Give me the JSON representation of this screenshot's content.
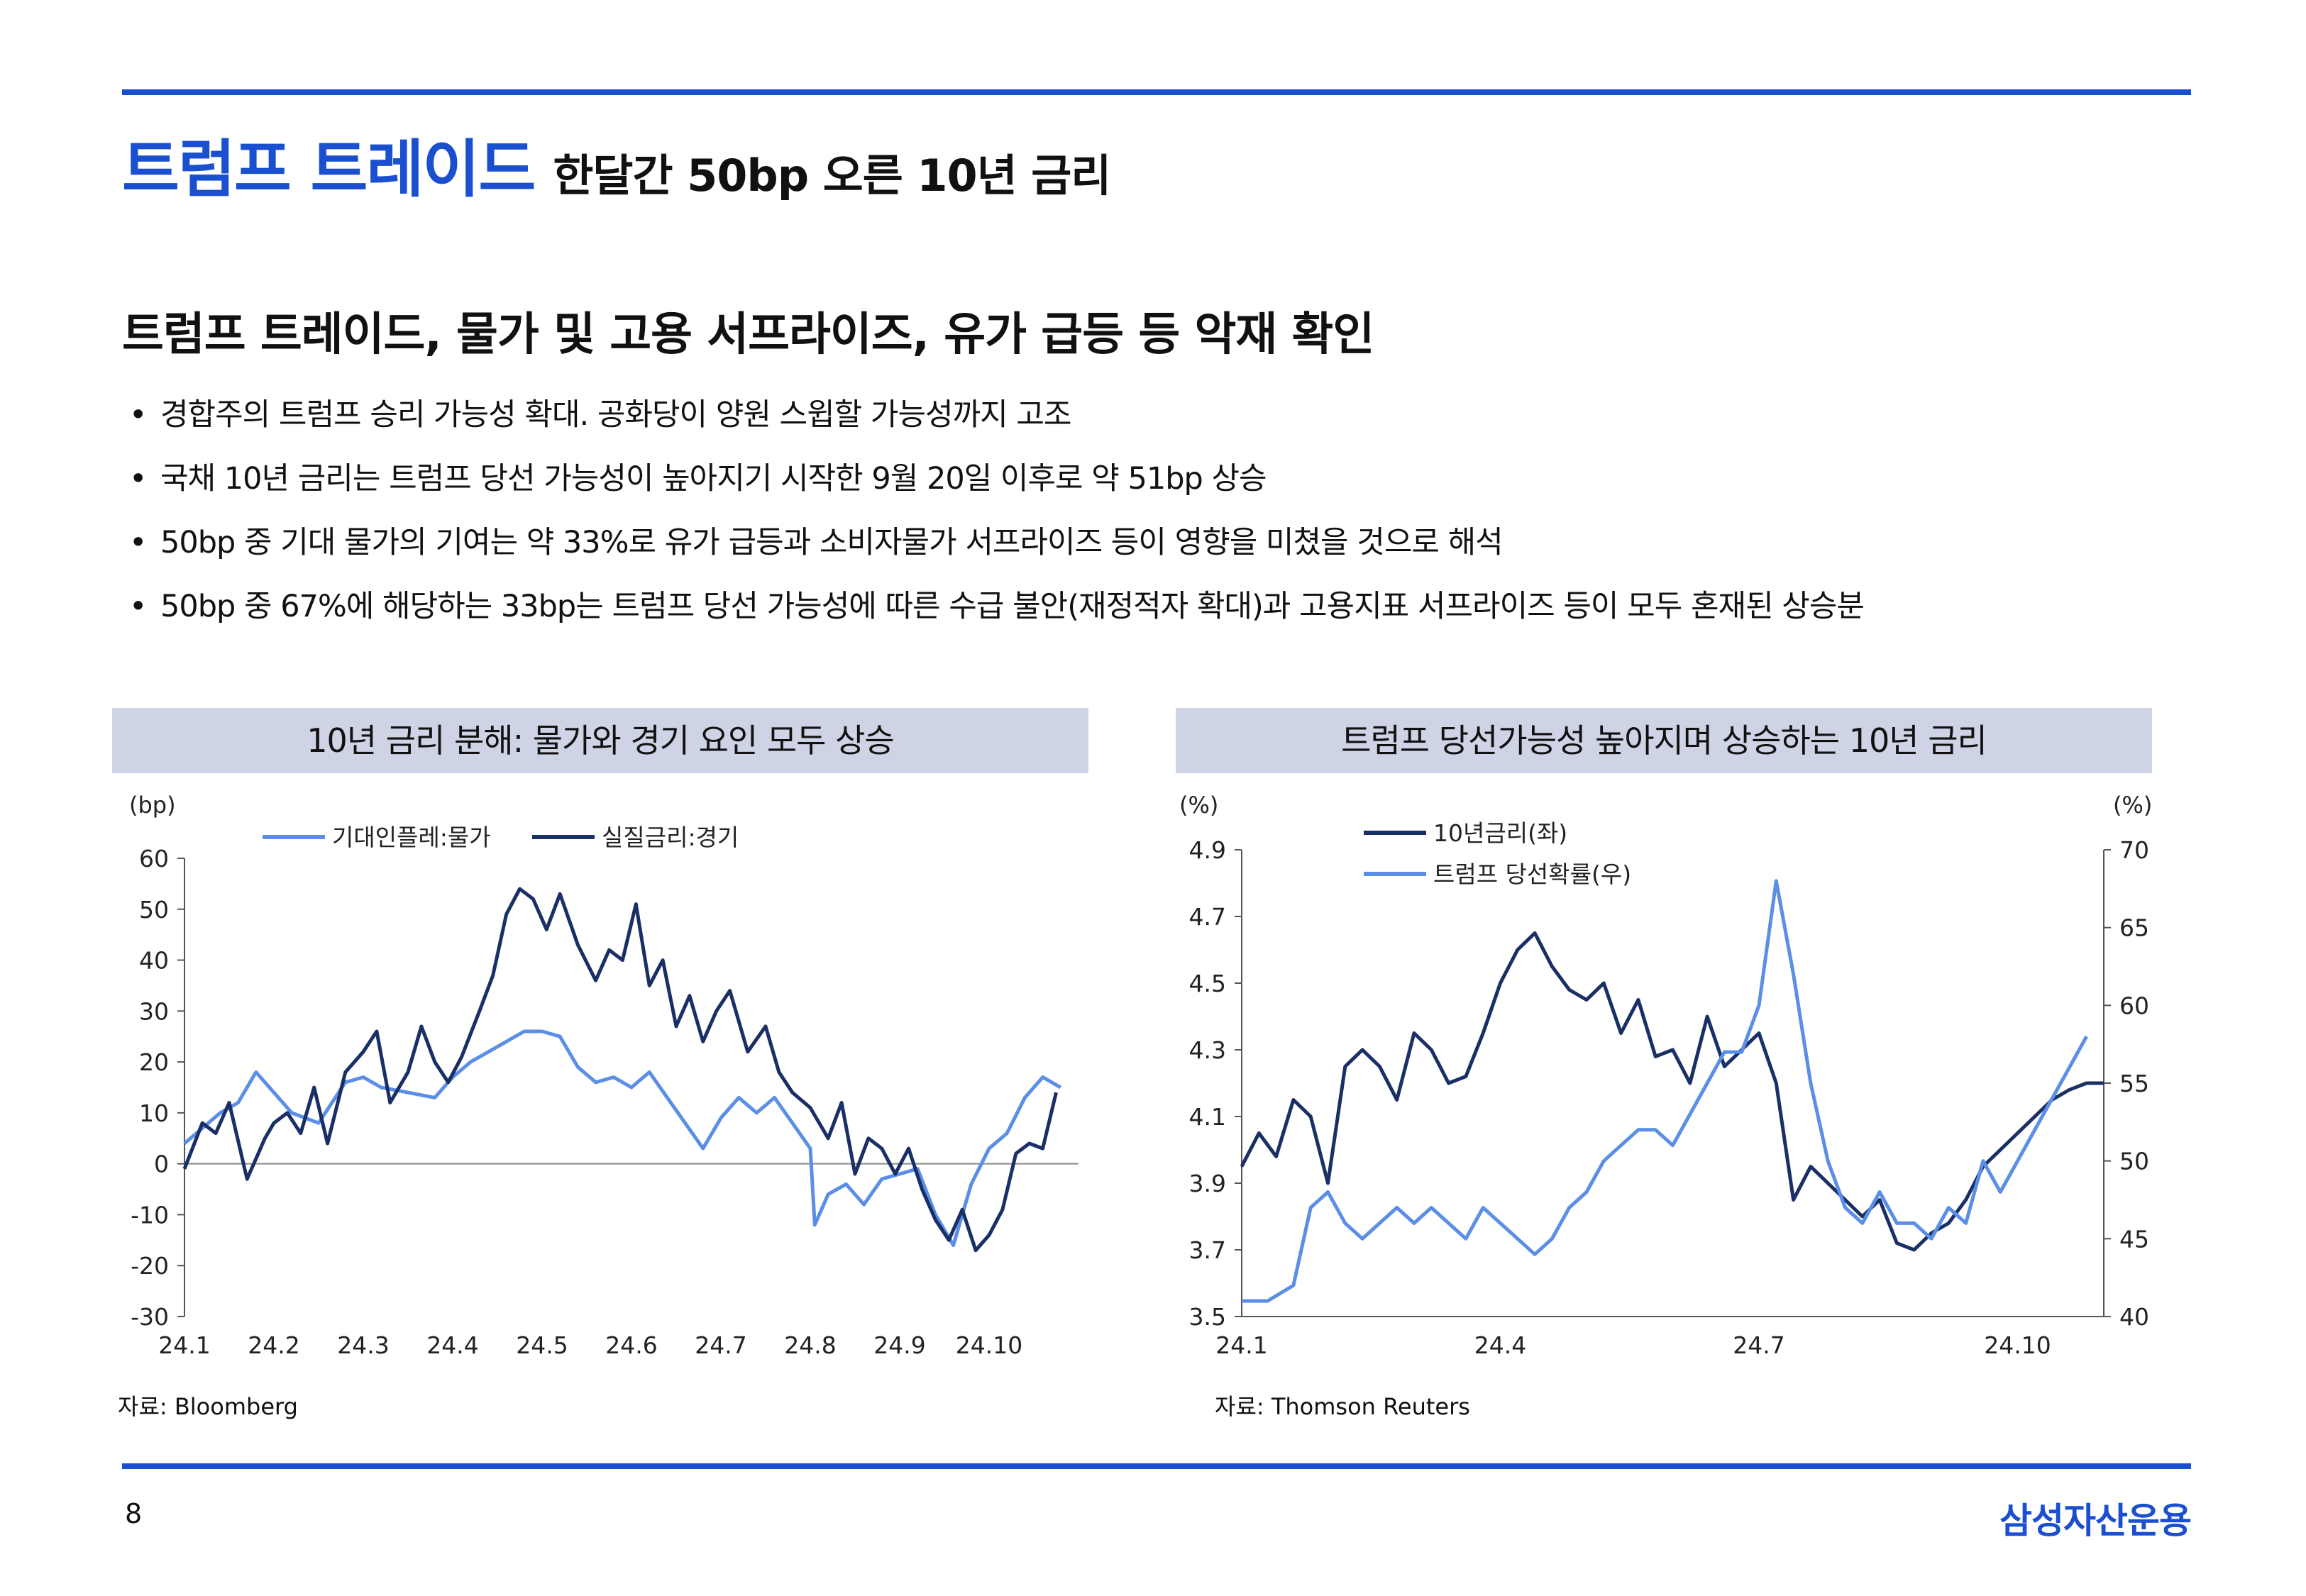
{
  "header": {
    "title_main": "트럼프 트레이드",
    "title_sub": "한달간 50bp 오른 10년 금리"
  },
  "headline": "트럼프 트레이드, 물가 및 고용 서프라이즈, 유가 급등 등 악재 확인",
  "bullets": [
    "경합주의 트럼프 승리 가능성 확대. 공화당이 양원 스윕할 가능성까지 고조",
    "국채 10년 금리는 트럼프 당선 가능성이 높아지기 시작한 9월 20일 이후로 약 51bp 상승",
    "50bp 중 기대 물가의 기여는 약 33%로 유가 급등과 소비자물가 서프라이즈 등이 영향을 미쳤을 것으로 해석",
    "50bp 중 67%에 해당하는 33bp는 트럼프 당선 가능성에 따른 수급 불안(재정적자 확대)과 고용지표 서프라이즈 등이 모두 혼재된 상승분"
  ],
  "bullet_marker": "•",
  "chart_data": [
    {
      "type": "line",
      "title": "10년 금리 분해: 물가와 경기 요인 모두 상승",
      "ylabel": "(bp)",
      "ylim": [
        -30,
        60
      ],
      "yticks": [
        60,
        50,
        40,
        30,
        20,
        10,
        0,
        -10,
        -20,
        -30
      ],
      "xlim": [
        0,
        10.0
      ],
      "xticks": [
        {
          "pos": 0,
          "label": "24.1"
        },
        {
          "pos": 1,
          "label": "24.2"
        },
        {
          "pos": 2,
          "label": "24.3"
        },
        {
          "pos": 3,
          "label": "24.4"
        },
        {
          "pos": 4,
          "label": "24.5"
        },
        {
          "pos": 5,
          "label": "24.6"
        },
        {
          "pos": 6,
          "label": "24.7"
        },
        {
          "pos": 7,
          "label": "24.8"
        },
        {
          "pos": 8,
          "label": "24.9"
        },
        {
          "pos": 9,
          "label": "24.10"
        }
      ],
      "series": [
        {
          "name": "기대인플레:물가",
          "color": "#5b8ee6",
          "x": [
            0,
            0.4,
            0.6,
            0.8,
            1.0,
            1.2,
            1.5,
            1.8,
            2.0,
            2.2,
            2.5,
            2.8,
            3.0,
            3.2,
            3.4,
            3.6,
            3.8,
            4.0,
            4.2,
            4.4,
            4.6,
            4.8,
            5.0,
            5.2,
            5.4,
            5.6,
            5.8,
            6.0,
            6.2,
            6.4,
            6.6,
            6.8,
            7.0,
            7.05,
            7.2,
            7.4,
            7.6,
            7.8,
            8.0,
            8.2,
            8.4,
            8.6,
            8.8,
            9.0,
            9.2,
            9.4,
            9.6,
            9.8
          ],
          "y": [
            4,
            10,
            12,
            18,
            14,
            10,
            8,
            16,
            17,
            15,
            14,
            13,
            17,
            20,
            22,
            24,
            26,
            26,
            25,
            19,
            16,
            17,
            15,
            18,
            13,
            8,
            3,
            9,
            13,
            10,
            13,
            8,
            3,
            -12,
            -6,
            -4,
            -8,
            -3,
            -2,
            -1,
            -10,
            -16,
            -4,
            3,
            6,
            13,
            17,
            15
          ]
        },
        {
          "name": "실질금리:경기",
          "color": "#1a2f66",
          "x": [
            0,
            0.2,
            0.35,
            0.5,
            0.7,
            0.9,
            1.0,
            1.15,
            1.3,
            1.45,
            1.6,
            1.8,
            2.0,
            2.15,
            2.3,
            2.5,
            2.65,
            2.8,
            2.95,
            3.1,
            3.3,
            3.45,
            3.6,
            3.75,
            3.9,
            4.05,
            4.2,
            4.4,
            4.6,
            4.75,
            4.9,
            5.05,
            5.2,
            5.35,
            5.5,
            5.65,
            5.8,
            5.95,
            6.1,
            6.3,
            6.5,
            6.65,
            6.8,
            7.0,
            7.2,
            7.35,
            7.5,
            7.65,
            7.8,
            7.95,
            8.1,
            8.25,
            8.4,
            8.55,
            8.7,
            8.85,
            9.0,
            9.15,
            9.3,
            9.45,
            9.6,
            9.75
          ],
          "y": [
            -1,
            8,
            6,
            12,
            -3,
            5,
            8,
            10,
            6,
            15,
            4,
            18,
            22,
            26,
            12,
            18,
            27,
            20,
            16,
            21,
            30,
            37,
            49,
            54,
            52,
            46,
            53,
            43,
            36,
            42,
            40,
            51,
            35,
            40,
            27,
            33,
            24,
            30,
            34,
            22,
            27,
            18,
            14,
            11,
            5,
            12,
            -2,
            5,
            3,
            -2,
            3,
            -5,
            -11,
            -15,
            -9,
            -17,
            -14,
            -9,
            2,
            4,
            3,
            14
          ]
        }
      ]
    },
    {
      "type": "line",
      "title": "트럼프 당선가능성 높아지며 상승하는 10년 금리",
      "ylabel_left": "(%)",
      "ylabel_right": "(%)",
      "ylim_left": [
        3.5,
        4.9
      ],
      "ylim_right": [
        40,
        70
      ],
      "yticks_left": [
        "4.9",
        "4.7",
        "4.5",
        "4.3",
        "4.1",
        "3.9",
        "3.7",
        "3.5"
      ],
      "yticks_right": [
        "70",
        "65",
        "60",
        "55",
        "50",
        "45",
        "40"
      ],
      "xlim": [
        0,
        10.0
      ],
      "xticks": [
        {
          "pos": 0,
          "label": "24.1"
        },
        {
          "pos": 3,
          "label": "24.4"
        },
        {
          "pos": 6,
          "label": "24.7"
        },
        {
          "pos": 9,
          "label": "24.10"
        }
      ],
      "series": [
        {
          "name": "10년금리(좌)",
          "axis": "left",
          "color": "#1a2f66",
          "x": [
            0,
            0.2,
            0.4,
            0.6,
            0.8,
            1.0,
            1.2,
            1.4,
            1.6,
            1.8,
            2.0,
            2.2,
            2.4,
            2.6,
            2.8,
            3.0,
            3.2,
            3.4,
            3.6,
            3.8,
            4.0,
            4.2,
            4.4,
            4.6,
            4.8,
            5.0,
            5.2,
            5.4,
            5.6,
            5.8,
            6.0,
            6.2,
            6.4,
            6.6,
            6.8,
            7.0,
            7.2,
            7.4,
            7.6,
            7.8,
            8.0,
            8.2,
            8.4,
            8.6,
            8.8,
            9.0,
            9.2,
            9.4,
            9.6,
            9.8,
            10.0
          ],
          "y": [
            3.95,
            4.05,
            3.98,
            4.15,
            4.1,
            3.9,
            4.25,
            4.3,
            4.25,
            4.15,
            4.35,
            4.3,
            4.2,
            4.22,
            4.35,
            4.5,
            4.6,
            4.65,
            4.55,
            4.48,
            4.45,
            4.5,
            4.35,
            4.45,
            4.28,
            4.3,
            4.2,
            4.4,
            4.25,
            4.3,
            4.35,
            4.2,
            3.85,
            3.95,
            3.9,
            3.85,
            3.8,
            3.85,
            3.72,
            3.7,
            3.75,
            3.78,
            3.85,
            3.95,
            4.0,
            4.05,
            4.1,
            4.15,
            4.18,
            4.2,
            4.2
          ]
        },
        {
          "name": "트럼프 당선확률(우)",
          "axis": "right",
          "color": "#5b8ee6",
          "x": [
            0,
            0.3,
            0.6,
            0.8,
            1.0,
            1.2,
            1.4,
            1.6,
            1.8,
            2.0,
            2.2,
            2.4,
            2.6,
            2.8,
            3.0,
            3.2,
            3.4,
            3.6,
            3.8,
            4.0,
            4.2,
            4.4,
            4.6,
            4.8,
            5.0,
            5.2,
            5.4,
            5.6,
            5.8,
            6.0,
            6.2,
            6.4,
            6.6,
            6.8,
            7.0,
            7.2,
            7.4,
            7.6,
            7.8,
            8.0,
            8.2,
            8.4,
            8.6,
            8.8,
            9.0,
            9.2,
            9.4,
            9.6,
            9.8
          ],
          "y": [
            41,
            41,
            42,
            47,
            48,
            46,
            45,
            46,
            47,
            46,
            47,
            46,
            45,
            47,
            46,
            45,
            44,
            45,
            47,
            48,
            50,
            51,
            52,
            52,
            51,
            53,
            55,
            57,
            57,
            60,
            68,
            62,
            55,
            50,
            47,
            46,
            48,
            46,
            46,
            45,
            47,
            46,
            50,
            48,
            50,
            52,
            54,
            56,
            58
          ]
        }
      ]
    }
  ],
  "sources": {
    "left": "자료: Bloomberg",
    "right": "자료:  Thomson Reuters"
  },
  "footer": {
    "page_number": "8",
    "brand": "삼성자산운용"
  }
}
